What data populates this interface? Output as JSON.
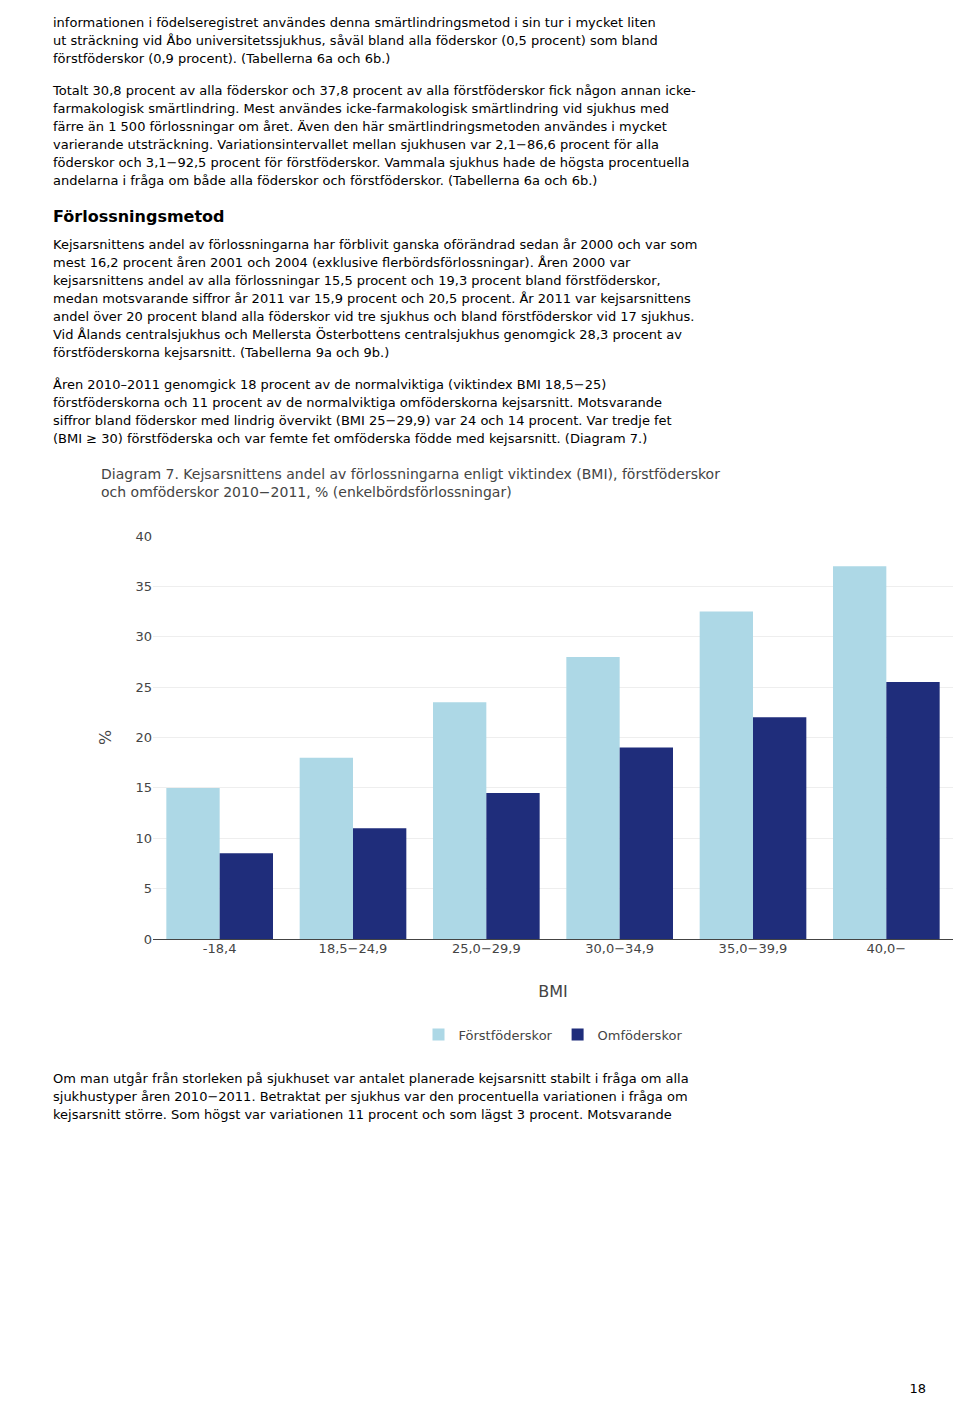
{
  "page": {
    "paragraphs_before": [
      "informationen i födelseregistret användes denna smärtlindringsmetod i sin tur i mycket liten\nut sträckning vid Åbo universitetssjukhus, såväl bland alla föderskor (0,5 procent) som bland\nförstföderskor (0,9 procent). (Tabellerna 6a och 6b.)",
      "Totalt 30,8 procent av alla föderskor och 37,8 procent av alla förstföderskor fick någon annan icke-\nfarmakologisk smärtlindring. Mest användes icke-farmakologisk smärtlindring vid sjukhus med\nfärre än 1 500 förlossningar om året. Även den här smärtlindringsmetoden användes i mycket\nvarierande utsträckning. Variationsintervallet mellan sjukhusen var 2,1−86,6 procent för alla\nföderskor och 3,1−92,5 procent för förstföderskor. Vammala sjukhus hade de högsta procentuella\nandelarna i fråga om både alla föderskor och förstföderskor. (Tabellerna 6a och 6b.)"
    ],
    "heading": "Förlossningsmetod",
    "paragraphs_after": [
      "Kejsarsnittens andel av förlossningarna har förblivit ganska oförändrad sedan år 2000 och var som\nmest 16,2 procent åren 2001 och 2004 (exklusive flerbördsförlossningar). Åren 2000 var\nkejsarsnittens andel av alla förlossningar 15,5 procent och 19,3 procent bland förstföderskor,\nmedan motsvarande siffror år 2011 var 15,9 procent och 20,5 procent. År 2011 var kejsarsnittens\nandel över 20 procent bland alla föderskor vid tre sjukhus och bland förstföderskor vid 17 sjukhus.\nVid Ålands centralsjukhus och Mellersta Österbottens centralsjukhus genomgick 28,3 procent av\nförstföderskorna kejsarsnitt. (Tabellerna 9a och 9b.)",
      "Åren 2010–2011 genomgick 18 procent av de normalviktiga (viktindex BMI 18,5−25)\nförstföderskorna och 11 procent av de normalviktiga omföderskorna kejsarsnitt. Motsvarande\nsiffror bland föderskor med lindrig övervikt (BMI 25−29,9) var 24 och 14 procent. Var tredje fet\n(BMI ≥ 30) förstföderska och var femte fet omföderska födde med kejsarsnitt. (Diagram 7.)"
    ],
    "footer": "Om man utgår från storleken på sjukhuset var antalet planerade kejsarsnitt stabilt i fråga om alla\nsjukhustyper åren 2010−2011. Betraktat per sjukhus var den procentuella variationen i fråga om\nkejsarsnitt större. Som högst var variationen 11 procent och som lägst 3 procent. Motsvarande",
    "page_number": "18"
  },
  "chart_data": {
    "type": "bar",
    "title": "Diagram 7. Kejsarsnittens andel av förlossningarna enligt viktindex (BMI), förstföderskor\noch omföderskor 2010−2011, % (enkelbördsförlossningar)",
    "categories": [
      "-18,4",
      "18,5−24,9",
      "25,0−29,9",
      "30,0−34,9",
      "35,0−39,9",
      "40,0−"
    ],
    "series": [
      {
        "name": "Förstföderskor",
        "color": "#add8e6",
        "values": [
          15.0,
          18.0,
          23.5,
          28.0,
          32.5,
          37.0
        ]
      },
      {
        "name": "Omföderskor",
        "color": "#1f2d7b",
        "values": [
          8.5,
          11.0,
          14.5,
          19.0,
          22.0,
          25.5
        ]
      }
    ],
    "xlabel": "BMI",
    "ylabel": "%",
    "ylim": [
      0,
      40
    ],
    "yticks": [
      0,
      5,
      10,
      15,
      20,
      25,
      30,
      35,
      40
    ],
    "grid": true,
    "legend": "bottom"
  }
}
